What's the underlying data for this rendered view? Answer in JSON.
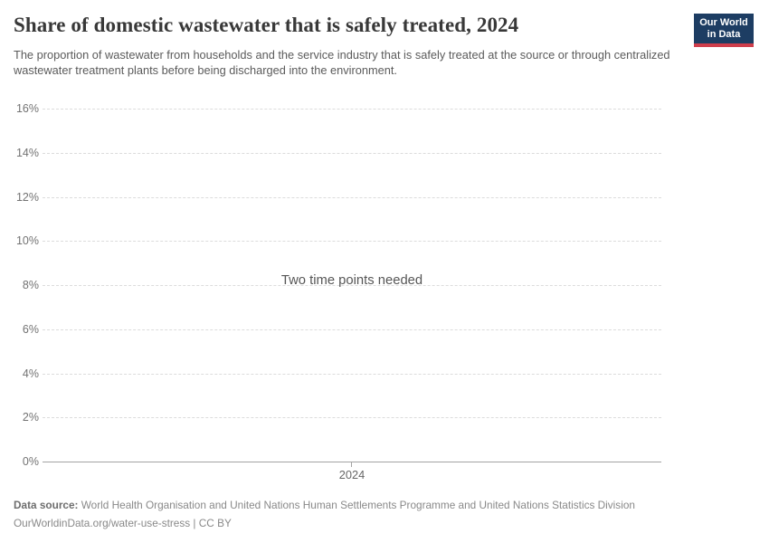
{
  "header": {
    "title": "Share of domestic wastewater that is safely treated, 2024",
    "subtitle": "The proportion of wastewater from households and the service industry that is safely treated at the source or through centralized wastewater treatment plants before being discharged into the environment.",
    "logo": {
      "line1": "Our World",
      "line2": "in Data"
    }
  },
  "chart_data": {
    "type": "line",
    "title": "Share of domestic wastewater that is safely treated, 2024",
    "x": [
      2024
    ],
    "series": [],
    "message": "Two time points needed",
    "xlabel": "",
    "ylabel": "",
    "ylim": [
      0,
      16
    ],
    "ytick_values": [
      0,
      2,
      4,
      6,
      8,
      10,
      12,
      14,
      16
    ],
    "yticks": [
      "0%",
      "2%",
      "4%",
      "6%",
      "8%",
      "10%",
      "12%",
      "14%",
      "16%"
    ],
    "xticks": [
      "2024"
    ],
    "grid": "horizontal dashed gridlines, on",
    "legend": "none",
    "note": "empty chart placeholder; no data series plotted"
  },
  "footer": {
    "source_label": "Data source:",
    "source_text": " World Health Organisation and United Nations Human Settlements Programme and United Nations Statistics Division",
    "attribution": "OurWorldinData.org/water-use-stress | CC BY"
  },
  "colors": {
    "logo_background": "#1d3d63",
    "logo_accent": "#cf3e4c",
    "title_text": "#383838",
    "subtitle_text": "#5b5b5b",
    "axis_label_text": "#737373",
    "gridline": "#dcdcdc",
    "axis_line": "#a3a3a3",
    "message_text": "#565656",
    "footer_text": "#898989",
    "background": "#ffffff"
  }
}
